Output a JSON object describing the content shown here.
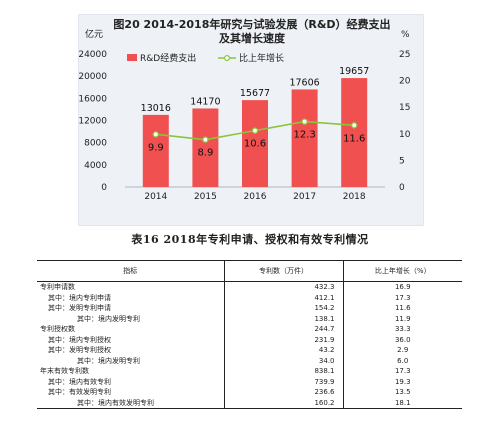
{
  "chart_data": {
    "type": "bar+line",
    "title_line1": "图20   2014-2018年研究与试验发展（R&D）经费支出",
    "title_line2": "及其增长速度",
    "left_unit": "亿元",
    "right_unit": "%",
    "categories": [
      "2014",
      "2015",
      "2016",
      "2017",
      "2018"
    ],
    "series": [
      {
        "name": "R&D经费支出",
        "type": "bar",
        "axis": "left",
        "values": [
          13016,
          14170,
          15677,
          17606,
          19657
        ],
        "color": "#f05050"
      },
      {
        "name": "比上年增长",
        "type": "line",
        "axis": "right",
        "values": [
          9.9,
          8.9,
          10.6,
          12.3,
          11.6
        ],
        "color": "#8cc43c"
      }
    ],
    "value_labels": {
      "bars": [
        "13016",
        "14170",
        "15677",
        "17606",
        "19657"
      ],
      "line": [
        "9.9",
        "8.9",
        "10.6",
        "12.3",
        "11.6"
      ]
    },
    "left_ticks": [
      "0",
      "4000",
      "8000",
      "12000",
      "16000",
      "20000",
      "24000"
    ],
    "right_ticks": [
      "0",
      "5",
      "10",
      "15",
      "20",
      "25"
    ],
    "ylim_left": [
      0,
      24000
    ],
    "ylim_right": [
      0,
      25
    ],
    "legend_position": "top"
  },
  "table": {
    "title": "表16    2018年专利申请、授权和有效专利情况",
    "headers": [
      "指标",
      "专利数（万件）",
      "比上年增长（%）"
    ],
    "rows": [
      {
        "indicator": "专利申请数",
        "value": "432.3",
        "growth": "16.9",
        "indent": 0
      },
      {
        "indicator": "其中：境内专利申请",
        "value": "412.1",
        "growth": "17.3",
        "indent": 1
      },
      {
        "indicator": "其中：发明专利申请",
        "value": "154.2",
        "growth": "11.6",
        "indent": 1
      },
      {
        "indicator": "其中：境内发明专利",
        "value": "138.1",
        "growth": "11.9",
        "indent": 2
      },
      {
        "indicator": "专利授权数",
        "value": "244.7",
        "growth": "33.3",
        "indent": 0
      },
      {
        "indicator": "其中：境内专利授权",
        "value": "231.9",
        "growth": "36.0",
        "indent": 1
      },
      {
        "indicator": "其中：发明专利授权",
        "value": "43.2",
        "growth": "2.9",
        "indent": 1
      },
      {
        "indicator": "其中：境内发明专利",
        "value": "34.0",
        "growth": "6.0",
        "indent": 2
      },
      {
        "indicator": "年末有效专利数",
        "value": "838.1",
        "growth": "17.3",
        "indent": 0
      },
      {
        "indicator": "其中：境内有效专利",
        "value": "739.9",
        "growth": "19.3",
        "indent": 1
      },
      {
        "indicator": "其中：有效发明专利",
        "value": "236.6",
        "growth": "13.5",
        "indent": 1
      },
      {
        "indicator": "其中：境内有效发明专利",
        "value": "160.2",
        "growth": "18.1",
        "indent": 2
      }
    ]
  }
}
